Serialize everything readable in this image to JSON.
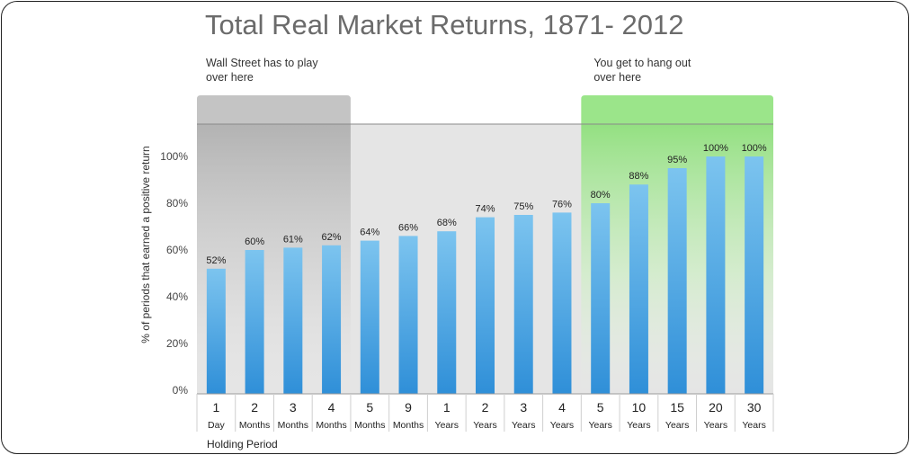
{
  "chart_data": {
    "type": "bar",
    "title": "Total Real Market Returns, 1871- 2012",
    "ylabel": "% of periods that earned a positive return",
    "xlabel": "Holding Period",
    "ylim": [
      0,
      100
    ],
    "yticks": [
      "0%",
      "20%",
      "40%",
      "60%",
      "80%",
      "100%"
    ],
    "grid": false,
    "categories": [
      {
        "num": "1",
        "unit": "Day"
      },
      {
        "num": "2",
        "unit": "Months"
      },
      {
        "num": "3",
        "unit": "Months"
      },
      {
        "num": "4",
        "unit": "Months"
      },
      {
        "num": "5",
        "unit": "Months"
      },
      {
        "num": "9",
        "unit": "Months"
      },
      {
        "num": "1",
        "unit": "Years"
      },
      {
        "num": "2",
        "unit": "Years"
      },
      {
        "num": "3",
        "unit": "Years"
      },
      {
        "num": "4",
        "unit": "Years"
      },
      {
        "num": "5",
        "unit": "Years"
      },
      {
        "num": "10",
        "unit": "Years"
      },
      {
        "num": "15",
        "unit": "Years"
      },
      {
        "num": "20",
        "unit": "Years"
      },
      {
        "num": "30",
        "unit": "Years"
      }
    ],
    "values": [
      52,
      60,
      61,
      62,
      64,
      66,
      68,
      74,
      75,
      76,
      80,
      88,
      95,
      100,
      100
    ],
    "data_labels": [
      "52%",
      "60%",
      "61%",
      "62%",
      "64%",
      "66%",
      "68%",
      "74%",
      "75%",
      "76%",
      "80%",
      "88%",
      "95%",
      "100%",
      "100%"
    ],
    "annotations": [
      {
        "lines": [
          "Wall Street has to play",
          "over here"
        ],
        "span": [
          0,
          3
        ],
        "color": "gray"
      },
      {
        "lines": [
          "You get to hang out",
          "over here"
        ],
        "span": [
          10,
          14
        ],
        "color": "green"
      }
    ],
    "colors": {
      "bar_top": "#7cc4ef",
      "bar_bottom": "#2f8fd8",
      "plot_bg": "#e5e5e5",
      "wall_street_region": "#c4c4c4",
      "you_region": "#9be58a",
      "title": "#6b6b6b"
    }
  }
}
